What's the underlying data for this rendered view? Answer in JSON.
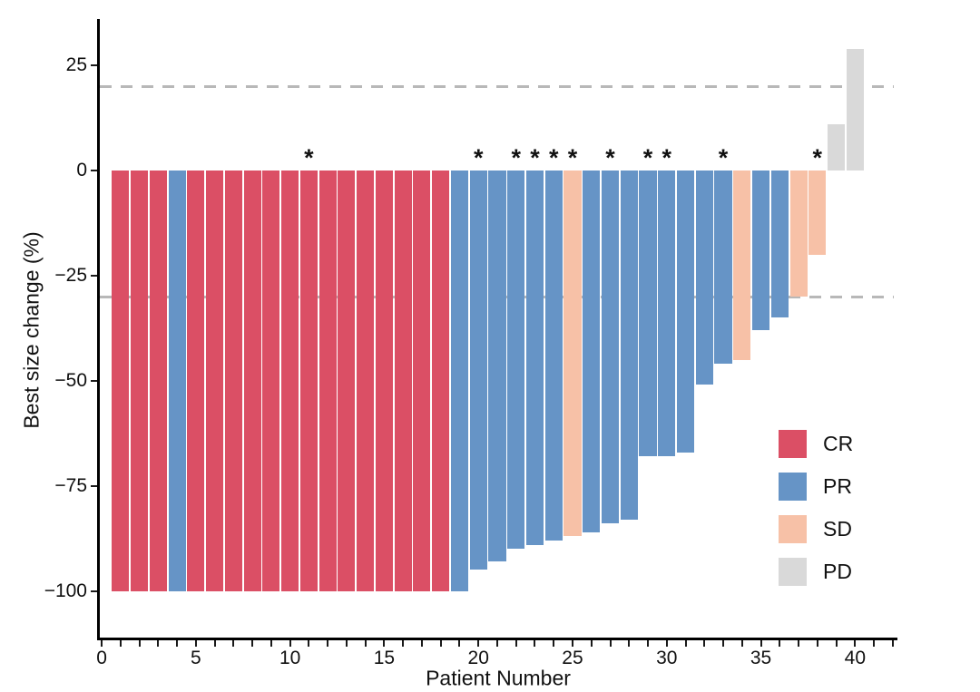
{
  "figure": {
    "background": "#ffffff"
  },
  "chart_data": {
    "type": "bar",
    "title": "",
    "xlabel": "Patient Number",
    "ylabel": "Best size change (%)",
    "xlim": [
      -0.1,
      42.2
    ],
    "ylim": [
      -111.5,
      35.8
    ],
    "x_major_ticks": [
      0,
      5,
      10,
      15,
      20,
      25,
      30,
      35,
      40
    ],
    "x_minor_tick_step": 1,
    "x_minor_tick_max": 42,
    "y_ticks": [
      25,
      0,
      -25,
      -50,
      -75,
      -100
    ],
    "y_tick_labels": [
      "25",
      "0",
      "−25",
      "−50",
      "−75",
      "−100"
    ],
    "grid": "off",
    "legend_position": "right-lower",
    "annotation_symbol": "*",
    "reference_lines": [
      20,
      -30
    ],
    "reference_line_style": "dashed",
    "reference_line_color": "#b8b8b8",
    "bar_width_units": 0.92,
    "colors": {
      "CR": "#db4f65",
      "PR": "#6694c6",
      "SD": "#f7c1a7",
      "PD": "#d9d9d9"
    },
    "points": [
      {
        "patient": 1,
        "value": -100,
        "response": "CR",
        "asterisk": false
      },
      {
        "patient": 2,
        "value": -100,
        "response": "CR",
        "asterisk": false
      },
      {
        "patient": 3,
        "value": -100,
        "response": "CR",
        "asterisk": false
      },
      {
        "patient": 4,
        "value": -100,
        "response": "PR",
        "asterisk": false
      },
      {
        "patient": 5,
        "value": -100,
        "response": "CR",
        "asterisk": false
      },
      {
        "patient": 6,
        "value": -100,
        "response": "CR",
        "asterisk": false
      },
      {
        "patient": 7,
        "value": -100,
        "response": "CR",
        "asterisk": false
      },
      {
        "patient": 8,
        "value": -100,
        "response": "CR",
        "asterisk": false
      },
      {
        "patient": 9,
        "value": -100,
        "response": "CR",
        "asterisk": false
      },
      {
        "patient": 10,
        "value": -100,
        "response": "CR",
        "asterisk": false
      },
      {
        "patient": 11,
        "value": -100,
        "response": "CR",
        "asterisk": true
      },
      {
        "patient": 12,
        "value": -100,
        "response": "CR",
        "asterisk": false
      },
      {
        "patient": 13,
        "value": -100,
        "response": "CR",
        "asterisk": false
      },
      {
        "patient": 14,
        "value": -100,
        "response": "CR",
        "asterisk": false
      },
      {
        "patient": 15,
        "value": -100,
        "response": "CR",
        "asterisk": false
      },
      {
        "patient": 16,
        "value": -100,
        "response": "CR",
        "asterisk": false
      },
      {
        "patient": 17,
        "value": -100,
        "response": "CR",
        "asterisk": false
      },
      {
        "patient": 18,
        "value": -100,
        "response": "CR",
        "asterisk": false
      },
      {
        "patient": 19,
        "value": -100,
        "response": "PR",
        "asterisk": false
      },
      {
        "patient": 20,
        "value": -95,
        "response": "PR",
        "asterisk": true
      },
      {
        "patient": 21,
        "value": -93,
        "response": "PR",
        "asterisk": false
      },
      {
        "patient": 22,
        "value": -90,
        "response": "PR",
        "asterisk": true
      },
      {
        "patient": 23,
        "value": -89,
        "response": "PR",
        "asterisk": true
      },
      {
        "patient": 24,
        "value": -88,
        "response": "PR",
        "asterisk": true
      },
      {
        "patient": 25,
        "value": -87,
        "response": "SD",
        "asterisk": true
      },
      {
        "patient": 26,
        "value": -86,
        "response": "PR",
        "asterisk": false
      },
      {
        "patient": 27,
        "value": -84,
        "response": "PR",
        "asterisk": true
      },
      {
        "patient": 28,
        "value": -83,
        "response": "PR",
        "asterisk": false
      },
      {
        "patient": 29,
        "value": -68,
        "response": "PR",
        "asterisk": true
      },
      {
        "patient": 30,
        "value": -68,
        "response": "PR",
        "asterisk": true
      },
      {
        "patient": 31,
        "value": -67,
        "response": "PR",
        "asterisk": false
      },
      {
        "patient": 32,
        "value": -51,
        "response": "PR",
        "asterisk": false
      },
      {
        "patient": 33,
        "value": -46,
        "response": "PR",
        "asterisk": true
      },
      {
        "patient": 34,
        "value": -45,
        "response": "SD",
        "asterisk": false
      },
      {
        "patient": 35,
        "value": -38,
        "response": "PR",
        "asterisk": false
      },
      {
        "patient": 36,
        "value": -35,
        "response": "PR",
        "asterisk": false
      },
      {
        "patient": 37,
        "value": -30,
        "response": "SD",
        "asterisk": false
      },
      {
        "patient": 38,
        "value": -20,
        "response": "SD",
        "asterisk": true
      },
      {
        "patient": 39,
        "value": 11,
        "response": "PD",
        "asterisk": false
      },
      {
        "patient": 40,
        "value": 29,
        "response": "PD",
        "asterisk": false
      }
    ]
  },
  "legend": {
    "items": [
      {
        "label": "CR"
      },
      {
        "label": "PR"
      },
      {
        "label": "SD"
      },
      {
        "label": "PD"
      }
    ]
  }
}
